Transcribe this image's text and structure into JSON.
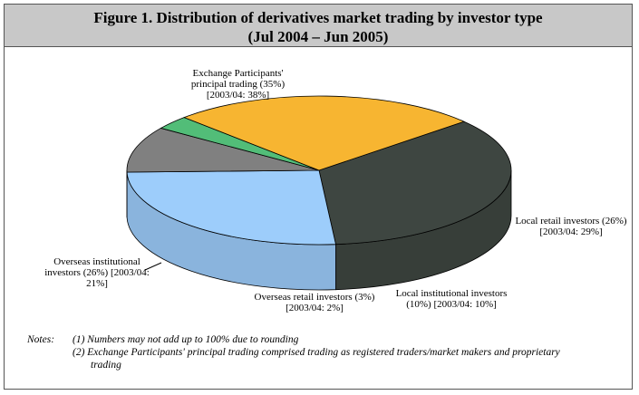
{
  "chart_data": {
    "type": "pie",
    "title": "Figure 1.  Distribution of derivatives market trading by investor type",
    "subtitle": "(Jul 2004 – Jun 2005)",
    "categories": [
      "Exchange Participants' principal trading",
      "Local retail investors",
      "Local institutional investors",
      "Overseas retail investors",
      "Overseas institutional investors"
    ],
    "values": [
      35,
      26,
      10,
      3,
      26
    ],
    "value_labels": [
      "(35%)",
      "(26%)",
      "(10%)",
      "(3%)",
      "(26%)"
    ],
    "previous_labels": [
      "[2003/04: 38%]",
      "[2003/04: 29%]",
      "[2003/04: 10%]",
      "[2003/04: 2%]",
      "[2003/04: 21%]"
    ],
    "colors": [
      "#3e4641",
      "#9dcdfb",
      "#808080",
      "#52bd78",
      "#f7b531"
    ],
    "notes": {
      "label": "Notes:",
      "items": [
        "(1) Numbers may not add up to 100% due to rounding",
        "(2) Exchange Participants' principal trading comprised trading as registered traders/market makers and proprietary trading"
      ]
    }
  }
}
